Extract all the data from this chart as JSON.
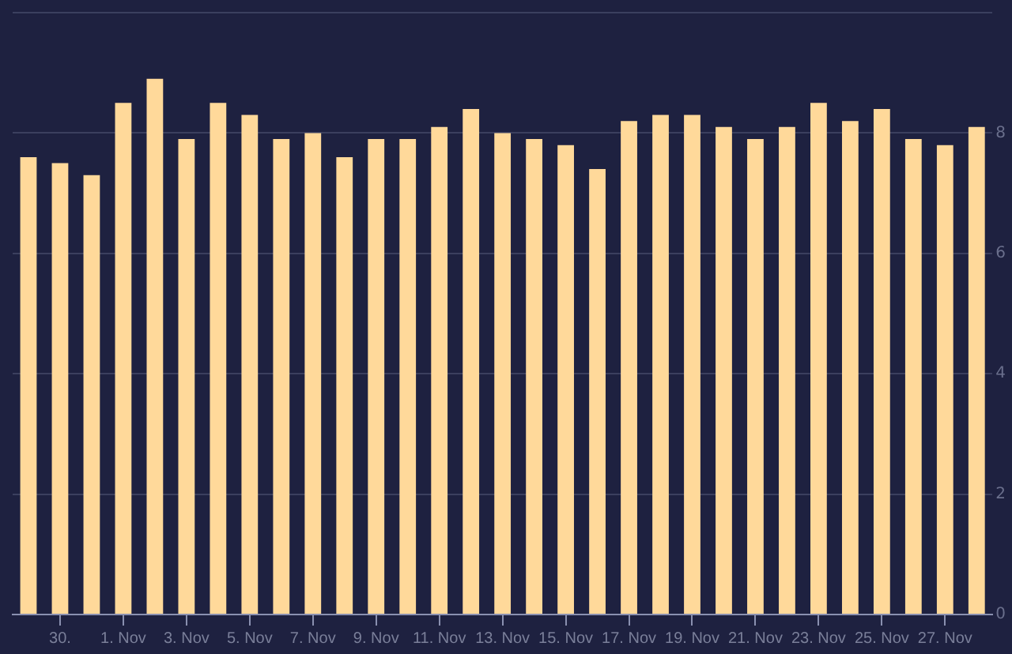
{
  "chart_data": {
    "type": "bar",
    "categories": [
      null,
      "30.",
      null,
      "1. Nov",
      null,
      "3. Nov",
      null,
      "5. Nov",
      null,
      "7. Nov",
      null,
      "9. Nov",
      null,
      "11. Nov",
      null,
      "13. Nov",
      null,
      "15. Nov",
      null,
      "17. Nov",
      null,
      "19. Nov",
      null,
      "21. Nov",
      null,
      "23. Nov",
      null,
      "25. Nov",
      null,
      "27. Nov",
      null
    ],
    "values": [
      7.6,
      7.5,
      7.3,
      8.5,
      8.9,
      7.9,
      8.5,
      8.3,
      7.9,
      8.0,
      7.6,
      7.9,
      7.9,
      8.1,
      8.4,
      8.0,
      7.9,
      7.8,
      7.4,
      8.2,
      8.3,
      8.3,
      8.1,
      7.9,
      8.1,
      8.5,
      8.2,
      8.4,
      7.9,
      7.8,
      8.1
    ],
    "color": "#ffd99a",
    "ylim": [
      0,
      10
    ],
    "yticks": [
      0,
      2,
      4,
      6,
      8,
      {
        "value": 10,
        "label": null
      }
    ],
    "grid": "y",
    "legend": false
  }
}
